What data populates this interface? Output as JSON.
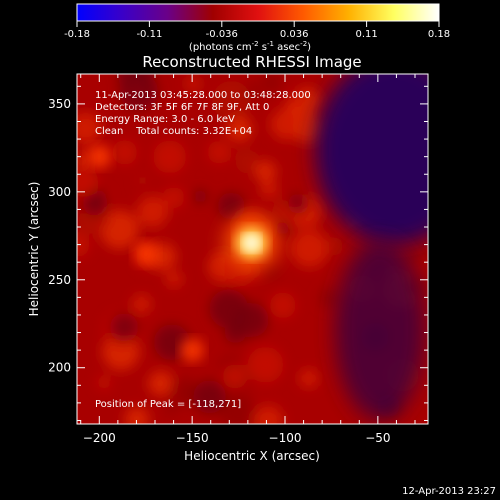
{
  "colorbar": {
    "ticks": [
      "-0.18",
      "-0.11",
      "-0.036",
      "0.036",
      "0.11",
      "0.18"
    ],
    "units_main": "(photons cm",
    "units_sup1": "-2",
    "units_mid1": " s",
    "units_sup2": "-1",
    "units_mid2": " asec",
    "units_sup3": "-2",
    "units_end": ")",
    "colors": [
      "#0000ff",
      "#3a00c8",
      "#6a0088",
      "#a00000",
      "#e01010",
      "#ff5a00",
      "#ffb000",
      "#ffff60",
      "#ffffff"
    ]
  },
  "chart_data": {
    "type": "heatmap",
    "title": "Reconstructed RHESSI Image",
    "xlabel": "Heliocentric X (arcsec)",
    "ylabel": "Heliocentric Y (arcsec)",
    "xlim": [
      -212,
      -23
    ],
    "ylim": [
      168,
      367
    ],
    "xticks": [
      -200,
      -150,
      -100,
      -50
    ],
    "yticks": [
      200,
      250,
      300,
      350
    ],
    "peak": [
      -118,
      271
    ],
    "peak_value": 0.18,
    "secondary_sources": [
      {
        "x": -150,
        "y": 210,
        "value": 0.07
      },
      {
        "x": -175,
        "y": 265,
        "value": 0.06
      },
      {
        "x": -200,
        "y": 320,
        "value": 0.05
      }
    ],
    "negative_region": {
      "x": -40,
      "y": 330,
      "value": -0.05
    },
    "annotations": [
      "11-Apr-2013 03:45:28.000 to 03:48:28.000",
      "Detectors: 3F 5F 6F 7F 8F 9F, Att 0",
      "Energy Range: 3.0 - 6.0 keV",
      "Clean    Total counts: 3.32E+04"
    ],
    "peak_label": "Position of Peak = [-118,271]"
  },
  "footer": {
    "timestamp": "12-Apr-2013 23:27"
  }
}
